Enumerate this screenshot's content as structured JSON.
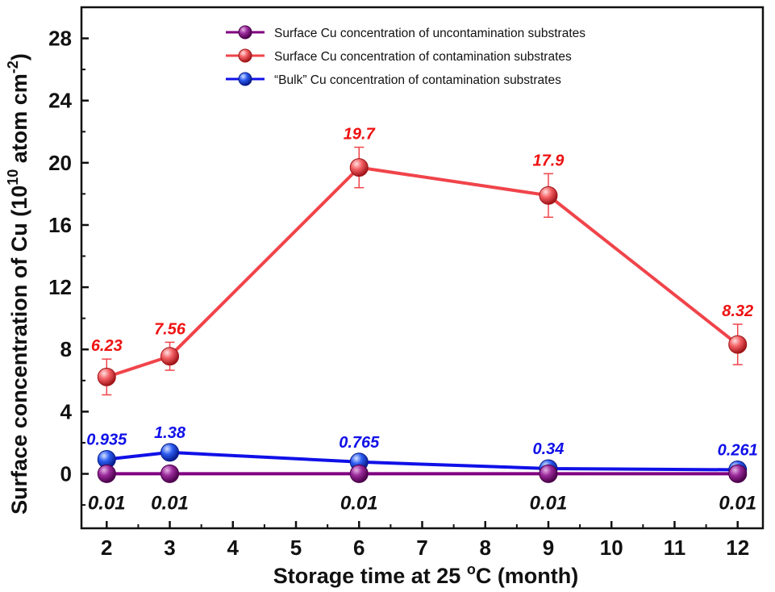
{
  "chart_data": {
    "type": "line",
    "xlabel_main": "Storage time at 25 ",
    "xlabel_sup": "o",
    "xlabel_end": "C (month)",
    "ylabel_main": "Surface concentration of Cu (10",
    "ylabel_sup1": "10",
    "ylabel_mid": " atom cm",
    "ylabel_sup2": "-2",
    "ylabel_end": ")",
    "xlim": [
      1.6,
      12.4
    ],
    "ylim": [
      -3.5,
      30
    ],
    "x_ticks": [
      2,
      3,
      4,
      5,
      6,
      7,
      8,
      9,
      10,
      11,
      12
    ],
    "y_ticks": [
      0,
      4,
      8,
      12,
      16,
      20,
      24,
      28
    ],
    "x": [
      2,
      3,
      6,
      9,
      12
    ],
    "series": [
      {
        "name": "Surface Cu concentration of uncontamination substrates",
        "color": "#800080",
        "values": [
          0.01,
          0.01,
          0.01,
          0.01,
          0.01
        ],
        "labels": [
          "0.01",
          "0.01",
          "0.01",
          "0.01",
          "0.01"
        ],
        "label_color": "#111111",
        "errors": [
          0,
          0,
          0,
          0,
          0
        ]
      },
      {
        "name": "Surface Cu concentration of contamination substrates",
        "color": "#f0444a",
        "values": [
          6.23,
          7.56,
          19.7,
          17.9,
          8.32
        ],
        "labels": [
          "6.23",
          "7.56",
          "19.7",
          "17.9",
          "8.32"
        ],
        "label_color": "#ee1111",
        "errors": [
          1.15,
          0.9,
          1.3,
          1.4,
          1.3
        ]
      },
      {
        "name": "“Bulk” Cu concentration of contamination substrates",
        "color": "#1010e8",
        "values": [
          0.935,
          1.38,
          0.765,
          0.34,
          0.261
        ],
        "labels": [
          "0.935",
          "1.38",
          "0.765",
          "0.34",
          "0.261"
        ],
        "label_color": "#1010e8",
        "errors": [
          0,
          0,
          0,
          0,
          0
        ]
      }
    ]
  }
}
